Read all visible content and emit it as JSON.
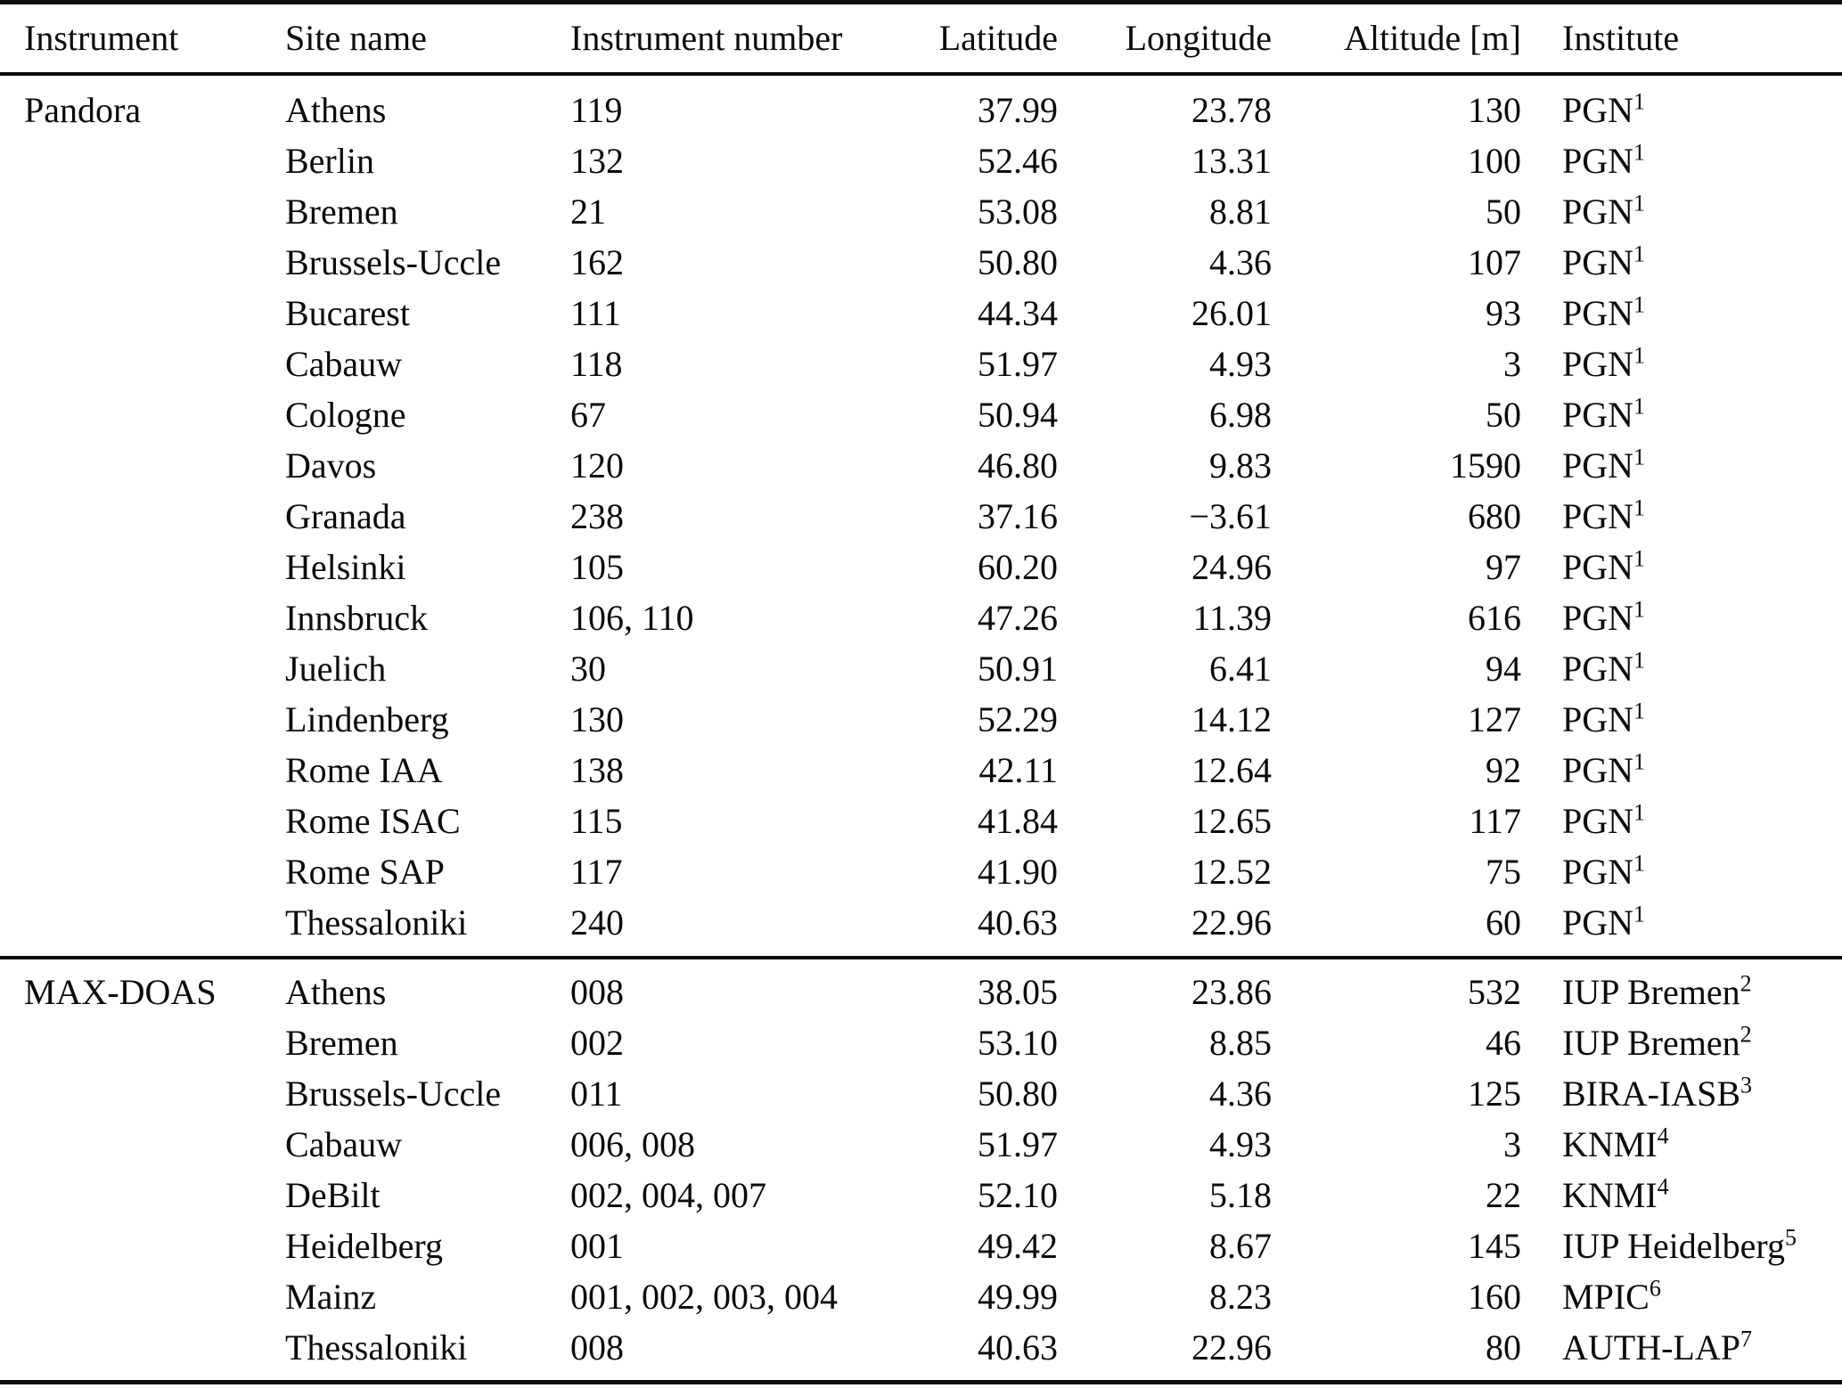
{
  "page": {
    "background_color": "#ffffff",
    "text_color": "#0b0b0b"
  },
  "table": {
    "columns": [
      {
        "label": "Instrument",
        "align": "left"
      },
      {
        "label": "Site name",
        "align": "left"
      },
      {
        "label": "Instrument number",
        "align": "left"
      },
      {
        "label": "Latitude",
        "align": "right"
      },
      {
        "label": "Longitude",
        "align": "right"
      },
      {
        "label": "Altitude [m]",
        "align": "right"
      },
      {
        "label": "Institute",
        "align": "left"
      }
    ],
    "groups": [
      {
        "instrument": "Pandora",
        "css": "pandora",
        "rows": [
          {
            "site": "Athens",
            "number": "119",
            "lat": "37.99",
            "lon": "23.78",
            "alt": "130",
            "institute": "PGN",
            "footnote": "1"
          },
          {
            "site": "Berlin",
            "number": "132",
            "lat": "52.46",
            "lon": "13.31",
            "alt": "100",
            "institute": "PGN",
            "footnote": "1"
          },
          {
            "site": "Bremen",
            "number": "21",
            "lat": "53.08",
            "lon": "8.81",
            "alt": "50",
            "institute": "PGN",
            "footnote": "1"
          },
          {
            "site": "Brussels-Uccle",
            "number": "162",
            "lat": "50.80",
            "lon": "4.36",
            "alt": "107",
            "institute": "PGN",
            "footnote": "1"
          },
          {
            "site": "Bucarest",
            "number": "111",
            "lat": "44.34",
            "lon": "26.01",
            "alt": "93",
            "institute": "PGN",
            "footnote": "1"
          },
          {
            "site": "Cabauw",
            "number": "118",
            "lat": "51.97",
            "lon": "4.93",
            "alt": "3",
            "institute": "PGN",
            "footnote": "1"
          },
          {
            "site": "Cologne",
            "number": "67",
            "lat": "50.94",
            "lon": "6.98",
            "alt": "50",
            "institute": "PGN",
            "footnote": "1"
          },
          {
            "site": "Davos",
            "number": "120",
            "lat": "46.80",
            "lon": "9.83",
            "alt": "1590",
            "institute": "PGN",
            "footnote": "1"
          },
          {
            "site": "Granada",
            "number": "238",
            "lat": "37.16",
            "lon": "−3.61",
            "alt": "680",
            "institute": "PGN",
            "footnote": "1"
          },
          {
            "site": "Helsinki",
            "number": "105",
            "lat": "60.20",
            "lon": "24.96",
            "alt": "97",
            "institute": "PGN",
            "footnote": "1"
          },
          {
            "site": "Innsbruck",
            "number": "106, 110",
            "lat": "47.26",
            "lon": "11.39",
            "alt": "616",
            "institute": "PGN",
            "footnote": "1"
          },
          {
            "site": "Juelich",
            "number": "30",
            "lat": "50.91",
            "lon": "6.41",
            "alt": "94",
            "institute": "PGN",
            "footnote": "1"
          },
          {
            "site": "Lindenberg",
            "number": "130",
            "lat": "52.29",
            "lon": "14.12",
            "alt": "127",
            "institute": "PGN",
            "footnote": "1"
          },
          {
            "site": "Rome IAA",
            "number": "138",
            "lat": "42.11",
            "lon": "12.64",
            "alt": "92",
            "institute": "PGN",
            "footnote": "1"
          },
          {
            "site": "Rome ISAC",
            "number": "115",
            "lat": "41.84",
            "lon": "12.65",
            "alt": "117",
            "institute": "PGN",
            "footnote": "1"
          },
          {
            "site": "Rome SAP",
            "number": "117",
            "lat": "41.90",
            "lon": "12.52",
            "alt": "75",
            "institute": "PGN",
            "footnote": "1"
          },
          {
            "site": "Thessaloniki",
            "number": "240",
            "lat": "40.63",
            "lon": "22.96",
            "alt": "60",
            "institute": "PGN",
            "footnote": "1"
          }
        ]
      },
      {
        "instrument": "MAX-DOAS",
        "css": "maxdoas",
        "rows": [
          {
            "site": "Athens",
            "number": "008",
            "lat": "38.05",
            "lon": "23.86",
            "alt": "532",
            "institute": "IUP Bremen",
            "footnote": "2"
          },
          {
            "site": "Bremen",
            "number": "002",
            "lat": "53.10",
            "lon": "8.85",
            "alt": "46",
            "institute": "IUP Bremen",
            "footnote": "2"
          },
          {
            "site": "Brussels-Uccle",
            "number": "011",
            "lat": "50.80",
            "lon": "4.36",
            "alt": "125",
            "institute": "BIRA-IASB",
            "footnote": "3"
          },
          {
            "site": "Cabauw",
            "number": "006, 008",
            "lat": "51.97",
            "lon": "4.93",
            "alt": "3",
            "institute": "KNMI",
            "footnote": "4"
          },
          {
            "site": "DeBilt",
            "number": "002, 004, 007",
            "lat": "52.10",
            "lon": "5.18",
            "alt": "22",
            "institute": "KNMI",
            "footnote": "4"
          },
          {
            "site": "Heidelberg",
            "number": "001",
            "lat": "49.42",
            "lon": "8.67",
            "alt": "145",
            "institute": "IUP Heidelberg",
            "footnote": "5"
          },
          {
            "site": "Mainz",
            "number": "001, 002, 003, 004",
            "lat": "49.99",
            "lon": "8.23",
            "alt": "160",
            "institute": "MPIC",
            "footnote": "6"
          },
          {
            "site": "Thessaloniki",
            "number": "008",
            "lat": "40.63",
            "lon": "22.96",
            "alt": "80",
            "institute": "AUTH-LAP",
            "footnote": "7"
          }
        ]
      }
    ]
  }
}
